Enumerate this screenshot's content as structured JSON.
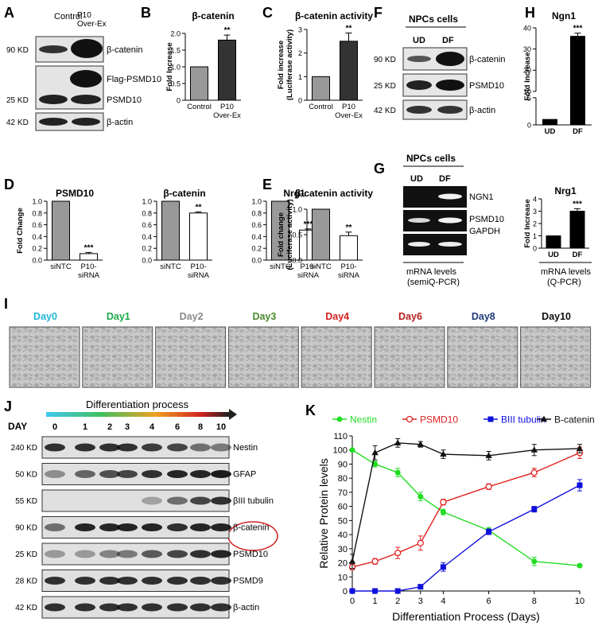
{
  "panel_letters": [
    "A",
    "B",
    "C",
    "D",
    "E",
    "F",
    "G",
    "H",
    "I",
    "J",
    "K"
  ],
  "panelA": {
    "lanes": [
      "Control",
      "P10\nOver-Ex"
    ],
    "rows": [
      {
        "kd": "90 KD",
        "label": "β-catenin"
      },
      {
        "kd": "",
        "label": "Flag-PSMD10"
      },
      {
        "kd": "25 KD",
        "label": "PSMD10"
      },
      {
        "kd": "42 KD",
        "label": "β-actin"
      }
    ]
  },
  "panelF": {
    "title": "NPCs cells",
    "lanes": [
      "UD",
      "DF"
    ],
    "rows": [
      {
        "kd": "90 KD",
        "label": "β-catenin"
      },
      {
        "kd": "25 KD",
        "label": "PSMD10"
      },
      {
        "kd": "42 KD",
        "label": "β-actin"
      }
    ]
  },
  "panelG": {
    "title": "NPCs cells",
    "lanes": [
      "UD",
      "DF"
    ],
    "rows": [
      "NGN1",
      "PSMD10",
      "GAPDH"
    ],
    "caption": [
      "mRNA levels",
      "(semiQ-PCR)"
    ]
  },
  "panelH": {
    "caption": [
      "mRNA levels",
      "(Q-PCR)"
    ]
  },
  "panelI": {
    "days": [
      {
        "label": "Day0",
        "color": "#22b5d6"
      },
      {
        "label": "Day1",
        "color": "#1aaa4a"
      },
      {
        "label": "Day2",
        "color": "#8a8a8a"
      },
      {
        "label": "Day3",
        "color": "#4c8a2a"
      },
      {
        "label": "Day4",
        "color": "#d42020"
      },
      {
        "label": "Day6",
        "color": "#b81c1c"
      },
      {
        "label": "Day8",
        "color": "#1f3a78"
      },
      {
        "label": "Day10",
        "color": "#111111"
      }
    ]
  },
  "panelJ": {
    "process_label": "Differentiation process",
    "day_label": "DAY",
    "days": [
      "0",
      "1",
      "2",
      "3",
      "4",
      "6",
      "8",
      "10"
    ],
    "rows": [
      {
        "kd": "240 KD",
        "label": "Nestin"
      },
      {
        "kd": "50 KD",
        "label": "GFAP"
      },
      {
        "kd": "55 KD",
        "label": "βIII tubulin"
      },
      {
        "kd": "90 KD",
        "label": "β-catenin"
      },
      {
        "kd": "25 KD",
        "label": "PSMD10"
      },
      {
        "kd": "28 KD",
        "label": "PSMD9"
      },
      {
        "kd": "42 KD",
        "label": "β-actin"
      }
    ]
  },
  "colors": {
    "bar_gray": "#999999",
    "bar_dark": "#333333",
    "bar_white": "#ffffff",
    "bar_black": "#000000",
    "nestin": "#22dd22",
    "psmd10": "#e02020",
    "tubulin": "#1010dd",
    "catenin": "#111111"
  },
  "chart_data": [
    {
      "id": "B",
      "type": "bar",
      "title": "β-catenin",
      "ylabel": "Fold Increase",
      "categories": [
        "Control",
        "P10\nOver-Ex"
      ],
      "values": [
        1.0,
        1.8
      ],
      "errors": [
        0,
        0.15
      ],
      "sig": [
        "",
        "**"
      ],
      "ylim": [
        0,
        2
      ],
      "yticks": [
        0,
        0.5,
        1.0,
        1.5,
        2.0
      ],
      "ytick_labels": [
        "0",
        "0.5",
        "1.0",
        "1.5",
        "2.0"
      ],
      "bar_colors": [
        "#999999",
        "#333333"
      ]
    },
    {
      "id": "C",
      "type": "bar",
      "title": "β-catenin activity",
      "ylabel": "Fold increase\n(Luciferase activity)",
      "categories": [
        "Control",
        "P10\nOver-Ex"
      ],
      "values": [
        1.0,
        2.5
      ],
      "errors": [
        0,
        0.35
      ],
      "sig": [
        "",
        "**"
      ],
      "ylim": [
        0,
        3
      ],
      "yticks": [
        0,
        1,
        2,
        3
      ],
      "ytick_labels": [
        "0",
        "1",
        "2",
        "3"
      ],
      "bar_colors": [
        "#999999",
        "#333333"
      ]
    },
    {
      "id": "D1",
      "type": "bar",
      "title": "PSMD10",
      "ylabel": "Fold Change",
      "categories": [
        "siNTC",
        "P10-\nsiRNA"
      ],
      "values": [
        1.0,
        0.11
      ],
      "errors": [
        0,
        0.02
      ],
      "sig": [
        "",
        "***"
      ],
      "ylim": [
        0,
        1.0
      ],
      "yticks": [
        0,
        0.2,
        0.4,
        0.6,
        0.8,
        1.0
      ],
      "ytick_labels": [
        "0.0",
        "0.2",
        "0.4",
        "0.6",
        "0.8",
        "1.0"
      ],
      "bar_colors": [
        "#999999",
        "#ffffff"
      ]
    },
    {
      "id": "D2",
      "type": "bar",
      "title": "β-catenin",
      "ylabel": "",
      "categories": [
        "siNTC",
        "P10-\nsiRNA"
      ],
      "values": [
        1.0,
        0.8
      ],
      "errors": [
        0,
        0.02
      ],
      "sig": [
        "",
        "**"
      ],
      "ylim": [
        0,
        1.0
      ],
      "yticks": [
        0,
        0.2,
        0.4,
        0.6,
        0.8,
        1.0
      ],
      "ytick_labels": [
        "0.0",
        "0.2",
        "0.4",
        "0.6",
        "0.8",
        "1.0"
      ],
      "bar_colors": [
        "#999999",
        "#ffffff"
      ]
    },
    {
      "id": "D3",
      "type": "bar",
      "title": "Nrg1",
      "ylabel": "",
      "categories": [
        "siNTC",
        "P10-\nsiRNA"
      ],
      "values": [
        1.0,
        0.51
      ],
      "errors": [
        0,
        0.02
      ],
      "sig": [
        "",
        "***"
      ],
      "ylim": [
        0,
        1.0
      ],
      "yticks": [
        0,
        0.2,
        0.4,
        0.6,
        0.8,
        1.0
      ],
      "ytick_labels": [
        "0.0",
        "0.2",
        "0.4",
        "0.6",
        "0.8",
        "1.0"
      ],
      "bar_colors": [
        "#999999",
        "#ffffff"
      ]
    },
    {
      "id": "E",
      "type": "bar",
      "title": "β-catenin activity",
      "ylabel": "Fold change\n(Luciferase activity)",
      "categories": [
        "siNTC",
        "P10-\nsiRNA"
      ],
      "values": [
        1.0,
        0.48
      ],
      "errors": [
        0,
        0.07
      ],
      "sig": [
        "",
        "**"
      ],
      "ylim": [
        0,
        1.0
      ],
      "yticks": [
        0,
        0.5,
        1.0
      ],
      "ytick_labels": [
        "0.0",
        "0.5",
        "1.0"
      ],
      "bar_colors": [
        "#999999",
        "#ffffff"
      ]
    },
    {
      "id": "H1",
      "type": "bar",
      "title": "Ngn1",
      "ylabel": "Fold Increase",
      "categories": [
        "UD",
        "DF"
      ],
      "values": [
        1.0,
        36.0
      ],
      "errors": [
        0,
        1.5
      ],
      "sig": [
        "",
        "***"
      ],
      "ylim": [
        0,
        40
      ],
      "broken_axis": [
        5,
        10
      ],
      "yticks": [
        0,
        5,
        10,
        20,
        30,
        40
      ],
      "ytick_labels": [
        "0",
        "5",
        "10",
        "20",
        "30",
        "40"
      ],
      "bar_colors": [
        "#000000",
        "#000000"
      ]
    },
    {
      "id": "H2",
      "type": "bar",
      "title": "Nrg1",
      "ylabel": "Fold Increase",
      "categories": [
        "UD",
        "DF"
      ],
      "values": [
        1.0,
        3.0
      ],
      "errors": [
        0,
        0.2
      ],
      "sig": [
        "",
        "***"
      ],
      "ylim": [
        0,
        4
      ],
      "yticks": [
        0,
        1,
        2,
        3,
        4
      ],
      "ytick_labels": [
        "0",
        "1",
        "2",
        "3",
        "4"
      ],
      "bar_colors": [
        "#000000",
        "#000000"
      ]
    },
    {
      "id": "K",
      "type": "line",
      "xlabel": "Differentiation Process (Days)",
      "ylabel": "Relative Protein levels",
      "x": [
        0,
        1,
        2,
        3,
        4,
        6,
        8,
        10
      ],
      "xticks": [
        0,
        1,
        2,
        3,
        4,
        6,
        8,
        10
      ],
      "yticks": [
        0,
        10,
        20,
        30,
        40,
        50,
        60,
        70,
        80,
        90,
        100,
        110
      ],
      "ylim": [
        0,
        110
      ],
      "legend_position": "top",
      "series": [
        {
          "name": "Nestin",
          "color": "#22dd22",
          "marker": "circle-filled",
          "values": [
            100,
            90,
            84,
            67,
            56,
            43,
            21,
            18
          ],
          "errors": [
            0,
            2,
            3,
            3,
            2,
            2,
            3,
            1
          ]
        },
        {
          "name": "PSMD10",
          "color": "#e02020",
          "marker": "circle-open",
          "values": [
            17,
            21,
            27,
            34,
            63,
            74,
            84,
            98
          ],
          "errors": [
            2,
            2,
            4,
            5,
            2,
            2,
            3,
            4
          ]
        },
        {
          "name": "BIII tubulin",
          "color": "#1010dd",
          "marker": "square-filled",
          "values": [
            0,
            0,
            0,
            3,
            17,
            42,
            58,
            75
          ],
          "errors": [
            0,
            0,
            0,
            1,
            3,
            2,
            2,
            4
          ]
        },
        {
          "name": "B-catenin",
          "color": "#111111",
          "marker": "triangle-filled",
          "values": [
            21,
            98,
            105,
            104,
            97,
            96,
            100,
            101
          ],
          "errors": [
            5,
            5,
            3,
            2,
            3,
            3,
            4,
            3
          ]
        }
      ]
    }
  ]
}
